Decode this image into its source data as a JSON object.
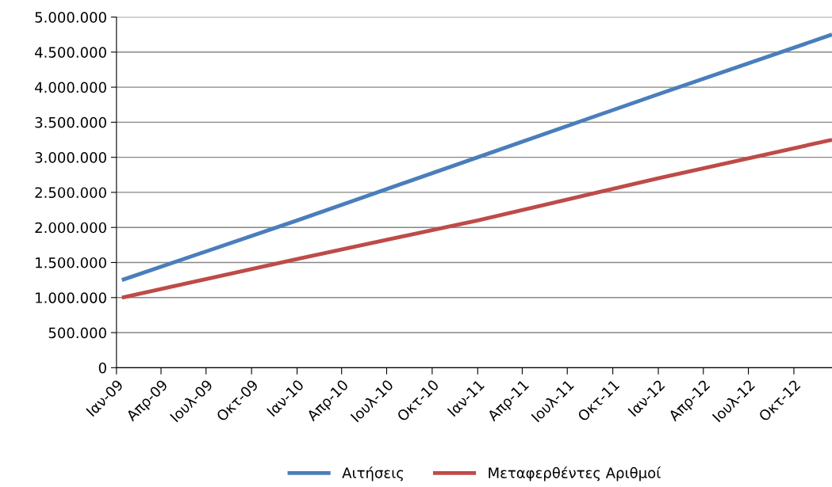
{
  "chart_data": {
    "type": "line",
    "x": [
      "2009-01-12",
      "2010-01-01",
      "2011-01-01",
      "2012-01-01",
      "2012-12-17"
    ],
    "series": [
      {
        "name": "Αιτήσεις",
        "color": "#4a7ebb",
        "values": [
          1250000,
          2100000,
          3000000,
          3900000,
          4750000
        ]
      },
      {
        "name": "Μεταφερθέντες Αριθμοί",
        "color": "#be4b48",
        "values": [
          1000000,
          1550000,
          2100000,
          2700000,
          3250000
        ]
      }
    ],
    "xlim": [
      "2009-01-01",
      "2012-12-17"
    ],
    "xticks": [
      {
        "value": "2009-01-01",
        "label": "Ιαν-09"
      },
      {
        "value": "2009-04-01",
        "label": "Απρ-09"
      },
      {
        "value": "2009-07-01",
        "label": "Ιουλ-09"
      },
      {
        "value": "2009-10-01",
        "label": "Οκτ-09"
      },
      {
        "value": "2010-01-01",
        "label": "Ιαν-10"
      },
      {
        "value": "2010-04-01",
        "label": "Απρ-10"
      },
      {
        "value": "2010-07-01",
        "label": "Ιουλ-10"
      },
      {
        "value": "2010-10-01",
        "label": "Οκτ-10"
      },
      {
        "value": "2011-01-01",
        "label": "Ιαν-11"
      },
      {
        "value": "2011-04-01",
        "label": "Απρ-11"
      },
      {
        "value": "2011-07-01",
        "label": "Ιουλ-11"
      },
      {
        "value": "2011-10-01",
        "label": "Οκτ-11"
      },
      {
        "value": "2012-01-01",
        "label": "Ιαν-12"
      },
      {
        "value": "2012-04-01",
        "label": "Απρ-12"
      },
      {
        "value": "2012-07-01",
        "label": "Ιουλ-12"
      },
      {
        "value": "2012-10-01",
        "label": "Οκτ-12"
      }
    ],
    "ylim": [
      0,
      5000000
    ],
    "yticks": [
      {
        "value": 0,
        "label": "0"
      },
      {
        "value": 500000,
        "label": "500.000"
      },
      {
        "value": 1000000,
        "label": "1.000.000"
      },
      {
        "value": 1500000,
        "label": "1.500.000"
      },
      {
        "value": 2000000,
        "label": "2.000.000"
      },
      {
        "value": 2500000,
        "label": "2.500.000"
      },
      {
        "value": 3000000,
        "label": "3.000.000"
      },
      {
        "value": 3500000,
        "label": "3.500.000"
      },
      {
        "value": 4000000,
        "label": "4.000.000"
      },
      {
        "value": 4500000,
        "label": "4.500.000"
      },
      {
        "value": 5000000,
        "label": "5.000.000"
      }
    ],
    "grid": "y",
    "legend": "bottom",
    "marker": "none",
    "line_style": "solid"
  }
}
